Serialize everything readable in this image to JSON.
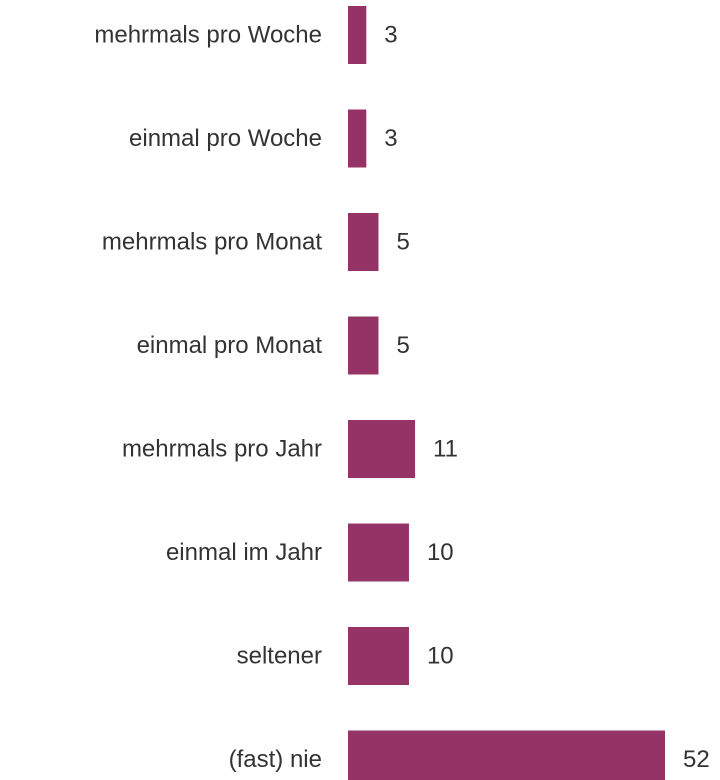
{
  "chart_data": {
    "type": "bar",
    "orientation": "horizontal",
    "categories": [
      "mehrmals pro Woche",
      "einmal pro Woche",
      "mehrmals pro Monat",
      "einmal pro Monat",
      "mehrmals pro Jahr",
      "einmal im Jahr",
      "seltener",
      "(fast) nie"
    ],
    "values": [
      3,
      3,
      5,
      5,
      11,
      10,
      10,
      52
    ],
    "data_labels": [
      "3",
      "3",
      "5",
      "5",
      "11",
      "10",
      "10",
      "52"
    ],
    "title": "",
    "xlabel": "",
    "ylabel": "",
    "xlim": [
      0,
      52
    ],
    "grid": false,
    "legend": "none",
    "bar_color": "#963366",
    "text_color": "#333333"
  }
}
